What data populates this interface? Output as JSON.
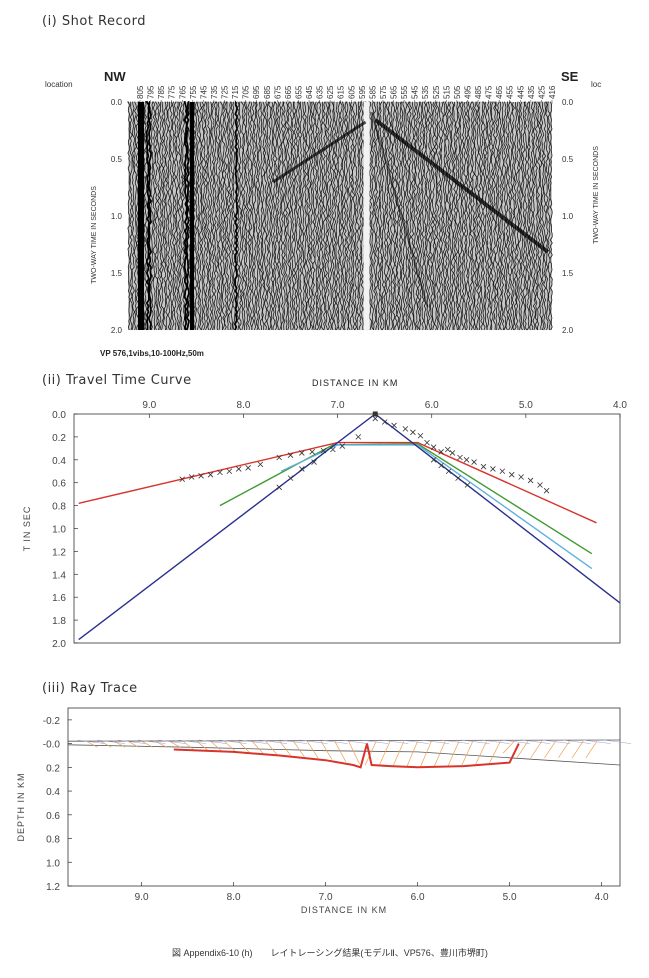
{
  "panel1": {
    "title": "(i)  Shot Record",
    "left_label": "location",
    "right_label": "loc",
    "dir_left": "NW",
    "dir_right": "SE",
    "station_labels": [
      "805",
      "795",
      "785",
      "775",
      "765",
      "755",
      "745",
      "735",
      "725",
      "715",
      "705",
      "695",
      "685",
      "675",
      "665",
      "655",
      "645",
      "635",
      "625",
      "615",
      "605",
      "595",
      "585",
      "575",
      "565",
      "555",
      "545",
      "535",
      "525",
      "515",
      "505",
      "495",
      "485",
      "475",
      "465",
      "455",
      "445",
      "435",
      "425",
      "416"
    ],
    "y_axis_label": "TWO-WAY TIME IN SECONDS",
    "y_ticks": [
      "0.0",
      "0.5",
      "1.0",
      "1.5",
      "2.0"
    ],
    "y_range": [
      0,
      2.0
    ],
    "source_info": "VP 576,1vibs,10-100Hz,50m"
  },
  "panel2": {
    "title": "(ii)  Travel Time Curve",
    "chart_data": {
      "type": "line",
      "xlabel": "DISTANCE IN KM",
      "ylabel": "T IN SEC",
      "x_ticks": [
        "9.0",
        "8.0",
        "7.0",
        "6.0",
        "5.0",
        "4.0"
      ],
      "y_ticks": [
        "0.0",
        "0.2",
        "0.4",
        "0.6",
        "0.8",
        "1.0",
        "1.2",
        "1.4",
        "1.6",
        "1.8",
        "2.0"
      ],
      "xlim": [
        9.8,
        4.0
      ],
      "ylim": [
        0,
        2.0
      ],
      "series": [
        {
          "color": "#d9342b",
          "x": [
            9.75,
            7.0,
            6.15,
            4.25
          ],
          "y": [
            0.78,
            0.25,
            0.25,
            0.95
          ]
        },
        {
          "color": "#3d9a2e",
          "x": [
            8.25,
            7.05,
            6.15,
            4.3
          ],
          "y": [
            0.8,
            0.27,
            0.26,
            1.22
          ]
        },
        {
          "color": "#5fb0e0",
          "x": [
            7.6,
            7.0,
            6.15,
            4.3
          ],
          "y": [
            0.5,
            0.27,
            0.27,
            1.35
          ]
        },
        {
          "color": "#2a2f8f",
          "x": [
            9.75,
            6.6,
            4.0
          ],
          "y": [
            1.97,
            0.0,
            1.65
          ]
        }
      ],
      "observed": {
        "x": [
          8.65,
          8.55,
          8.45,
          8.35,
          8.25,
          8.15,
          8.05,
          7.95,
          7.82,
          7.62,
          7.5,
          7.38,
          7.27,
          7.15,
          7.05,
          6.95,
          6.78,
          6.6,
          6.5,
          6.4,
          6.28,
          6.2,
          6.12,
          6.05,
          5.98,
          5.9,
          5.83,
          5.78,
          5.7,
          5.63,
          5.55,
          5.45,
          5.35,
          5.25,
          5.15,
          5.05,
          4.95,
          4.85,
          4.78
        ],
        "y": [
          0.57,
          0.55,
          0.54,
          0.53,
          0.51,
          0.5,
          0.48,
          0.47,
          0.44,
          0.38,
          0.36,
          0.34,
          0.33,
          0.32,
          0.31,
          0.28,
          0.2,
          0.04,
          0.07,
          0.1,
          0.13,
          0.16,
          0.19,
          0.25,
          0.29,
          0.33,
          0.31,
          0.34,
          0.38,
          0.4,
          0.42,
          0.46,
          0.48,
          0.5,
          0.53,
          0.55,
          0.58,
          0.62,
          0.67
        ]
      },
      "observed_left_lower": {
        "x": [
          7.62,
          7.5,
          7.38,
          7.25
        ],
        "y": [
          0.64,
          0.56,
          0.48,
          0.42
        ]
      },
      "observed_right_lower": {
        "x": [
          5.98,
          5.9,
          5.82,
          5.72,
          5.62
        ],
        "y": [
          0.4,
          0.45,
          0.5,
          0.56,
          0.62
        ]
      }
    }
  },
  "panel3": {
    "title": "(iii)  Ray Trace",
    "chart_data": {
      "type": "line",
      "xlabel": "DISTANCE IN KM",
      "ylabel": "DEPTH IN KM",
      "x_ticks": [
        "9.0",
        "8.0",
        "7.0",
        "6.0",
        "5.0",
        "4.0"
      ],
      "y_ticks": [
        "-0.2",
        "-0.0",
        "0.2",
        "0.4",
        "0.6",
        "0.8",
        "1.0",
        "1.2"
      ],
      "xlim": [
        9.8,
        3.8
      ],
      "ylim": [
        -0.3,
        1.2
      ],
      "refractor": {
        "color": "#d9342b",
        "x": [
          8.65,
          8.0,
          7.5,
          7.0,
          6.7,
          6.62,
          6.55,
          6.5,
          6.3,
          6.0,
          5.5,
          5.0,
          4.9
        ],
        "y": [
          0.05,
          0.07,
          0.1,
          0.14,
          0.18,
          0.2,
          0.0,
          0.18,
          0.19,
          0.2,
          0.19,
          0.16,
          0.0
        ]
      },
      "boundary_lower": {
        "x": [
          9.8,
          8.5,
          7.5,
          7.0,
          6.0,
          5.0,
          3.8
        ],
        "y": [
          0.01,
          0.03,
          0.05,
          0.06,
          0.07,
          0.12,
          0.18
        ]
      },
      "boundary_surface": {
        "x": [
          9.8,
          3.8
        ],
        "y": [
          -0.02,
          -0.03
        ]
      }
    }
  },
  "caption": "図 Appendix6-10 (h)　　レイトレーシング結果(モデルⅡ、VP576、豊川市堺町)"
}
